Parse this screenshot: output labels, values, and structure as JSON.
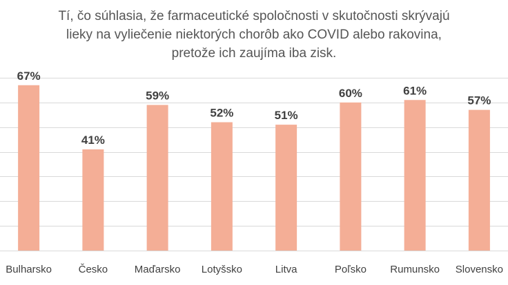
{
  "title_lines": [
    "Tí, čo súhlasia, že farmaceutické spoločnosti v skutočnosti skrývajú",
    "lieky na vyliečenie niektorých chorôb ako COVID alebo rakovina,",
    "pretože ich zaujíma iba zisk."
  ],
  "colors": {
    "bar": "#F4AE96",
    "grid": "#D9D9D9",
    "text": "#404040",
    "title": "#555555"
  },
  "chart_data": {
    "type": "bar",
    "title": "Tí, čo súhlasia, že farmaceutické spoločnosti v skutočnosti skrývajú lieky na vyliečenie niektorých chorôb ako COVID alebo rakovina, pretože ich zaujíma iba zisk.",
    "categories": [
      "Bulharsko",
      "Česko",
      "Maďarsko",
      "Lotyšsko",
      "Litva",
      "Poľsko",
      "Rumunsko",
      "Slovensko"
    ],
    "values": [
      67,
      41,
      59,
      52,
      51,
      60,
      61,
      57
    ],
    "value_labels": [
      "67%",
      "41%",
      "59%",
      "52%",
      "51%",
      "60%",
      "61%",
      "57%"
    ],
    "unit": "%",
    "xlabel": "",
    "ylabel": "",
    "ylim": [
      0,
      70
    ],
    "grid": true,
    "legend": "none"
  }
}
